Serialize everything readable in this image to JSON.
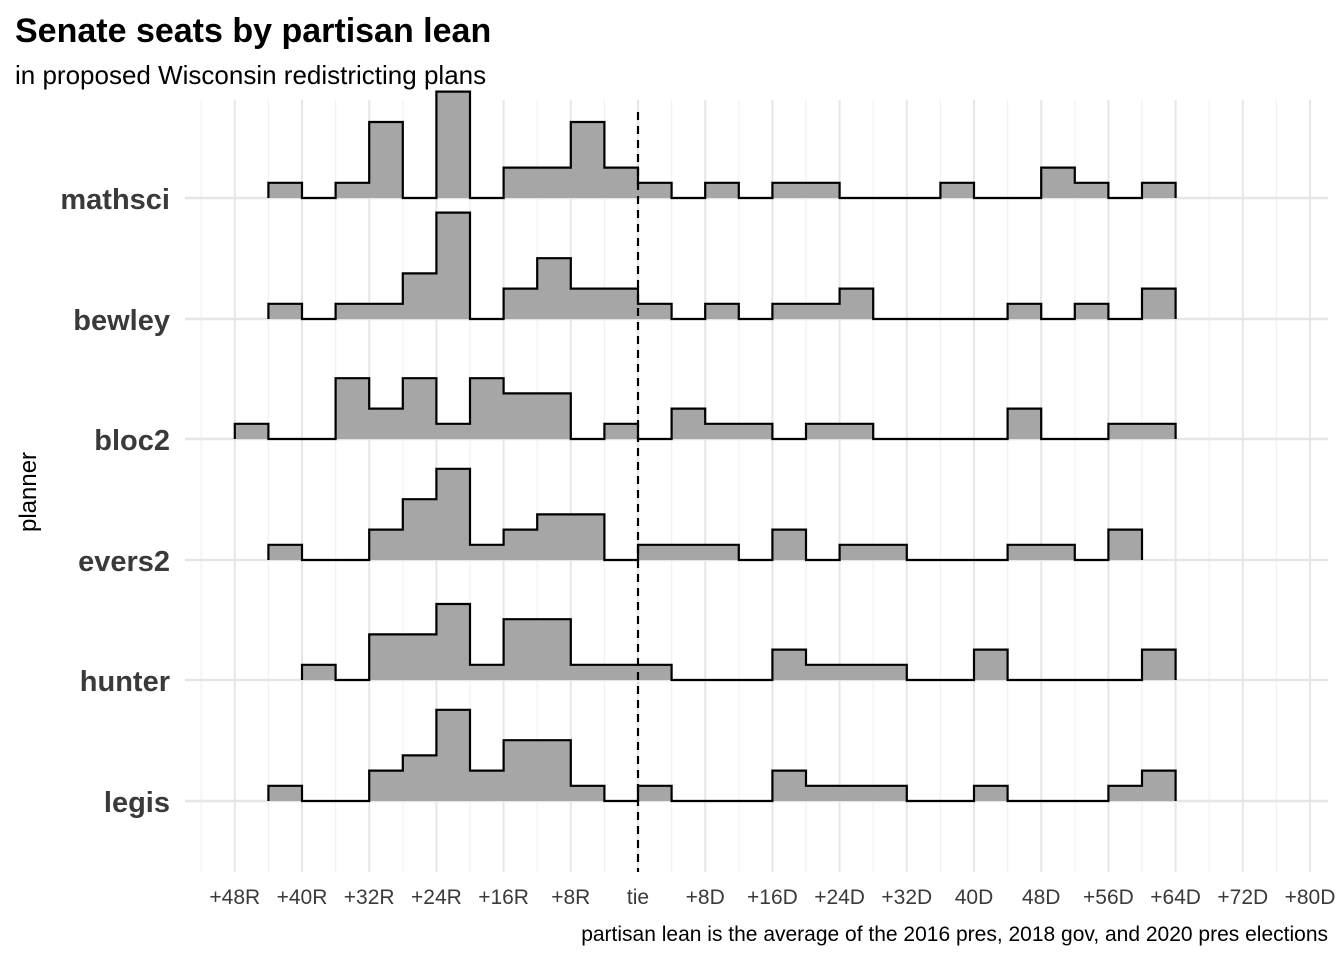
{
  "chart_data": {
    "type": "area",
    "title": "Senate seats by partisan lean",
    "subtitle": "in proposed Wisconsin redistricting plans",
    "ylabel": "planner",
    "caption": "partisan lean is the average of the 2016 pres, 2018 gov, and 2020 pres elections",
    "x_tick_values": [
      -48,
      -40,
      -32,
      -24,
      -16,
      -8,
      0,
      8,
      16,
      24,
      32,
      40,
      48,
      56,
      64,
      72,
      80
    ],
    "x_tick_labels": [
      "+48R",
      "+40R",
      "+32R",
      "+24R",
      "+16R",
      "+8R",
      "tie",
      "+8D",
      "+16D",
      "+24D",
      "+32D",
      "40D",
      "48D",
      "+56D",
      "+64D",
      "+72D",
      "+80D"
    ],
    "xlim": [
      -52,
      82
    ],
    "reference_line_x": 0,
    "bin_width": 4,
    "bin_centers": [
      -46,
      -42,
      -38,
      -34,
      -30,
      -26,
      -22,
      -18,
      -14,
      -10,
      -6,
      -2,
      2,
      6,
      10,
      14,
      18,
      22,
      26,
      30,
      34,
      38,
      42,
      46,
      50,
      54,
      58,
      62,
      66,
      70
    ],
    "fill_color": "#a6a6a6",
    "line_color": "#000000",
    "series": [
      {
        "name": "mathsci",
        "values": [
          0,
          1,
          0,
          1,
          5,
          0,
          7,
          0,
          2,
          2,
          5,
          2,
          1,
          0,
          1,
          0,
          1,
          1,
          0,
          0,
          0,
          1,
          0,
          0,
          2,
          1,
          0,
          1,
          0,
          0
        ]
      },
      {
        "name": "bewley",
        "values": [
          0,
          1,
          0,
          1,
          1,
          3,
          7,
          0,
          2,
          4,
          2,
          2,
          1,
          0,
          1,
          0,
          1,
          1,
          2,
          0,
          0,
          0,
          0,
          1,
          0,
          1,
          0,
          2,
          0,
          0
        ]
      },
      {
        "name": "bloc2",
        "values": [
          1,
          0,
          0,
          4,
          2,
          4,
          1,
          4,
          3,
          3,
          0,
          1,
          0,
          2,
          1,
          1,
          0,
          1,
          1,
          0,
          0,
          0,
          0,
          2,
          0,
          0,
          1,
          1,
          0,
          0
        ]
      },
      {
        "name": "evers2",
        "values": [
          0,
          1,
          0,
          0,
          2,
          4,
          6,
          1,
          2,
          3,
          3,
          0,
          1,
          1,
          1,
          0,
          2,
          0,
          1,
          1,
          0,
          0,
          0,
          1,
          1,
          0,
          2,
          0,
          0,
          0
        ]
      },
      {
        "name": "hunter",
        "values": [
          0,
          0,
          1,
          0,
          3,
          3,
          5,
          1,
          4,
          4,
          1,
          1,
          1,
          0,
          0,
          0,
          2,
          1,
          1,
          1,
          0,
          0,
          2,
          0,
          0,
          0,
          0,
          2,
          0,
          0
        ]
      },
      {
        "name": "legis",
        "values": [
          0,
          1,
          0,
          0,
          2,
          3,
          6,
          2,
          4,
          4,
          1,
          0,
          1,
          0,
          0,
          0,
          2,
          1,
          1,
          1,
          0,
          0,
          1,
          0,
          0,
          0,
          1,
          2,
          0,
          0
        ]
      }
    ]
  }
}
